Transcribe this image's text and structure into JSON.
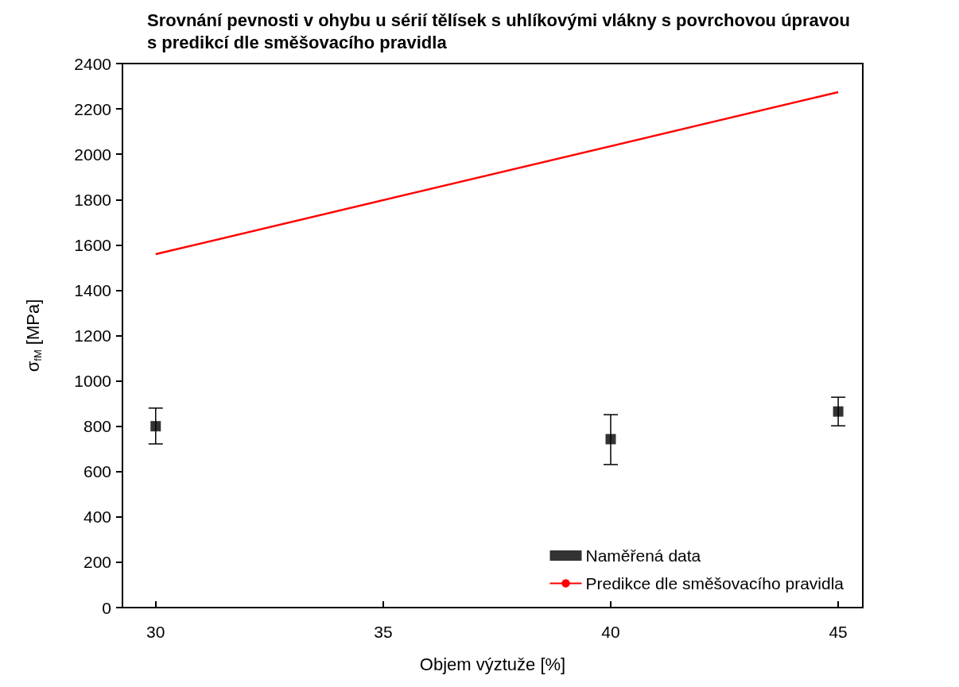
{
  "chart_data": {
    "type": "scatter",
    "title": "Srovnání pevnosti v ohybu u sérií tělísek s uhlíkovými vlákny s povrchovou úpravou s predikcí dle směšovacího pravidla",
    "xlabel": "Objem výztuže [%]",
    "ylabel": "σ$_{fM}$ [MPa]",
    "xlim": [
      29.27,
      45.54
    ],
    "xticks": [
      30,
      35,
      40,
      45
    ],
    "ylim": [
      0,
      2400
    ],
    "yticks": [
      0,
      200,
      400,
      600,
      800,
      1000,
      1200,
      1400,
      1600,
      1800,
      2000,
      2200,
      2400
    ],
    "grid": false,
    "legend": "bottom right",
    "series": [
      {
        "name": "Naměřená data",
        "marker": "square",
        "color": "#000000",
        "x": [
          30,
          40,
          45
        ],
        "values": [
          800,
          743,
          865
        ],
        "errors": [
          [
            722,
            880
          ],
          [
            631,
            851
          ],
          [
            802,
            928
          ]
        ]
      },
      {
        "name": "Predikce dle směšovacího pravidla",
        "type": "line",
        "marker": "none",
        "line_style": "solid",
        "color": "#ff0000",
        "x": [
          30,
          45
        ],
        "values": [
          1559,
          2274
        ]
      }
    ]
  }
}
